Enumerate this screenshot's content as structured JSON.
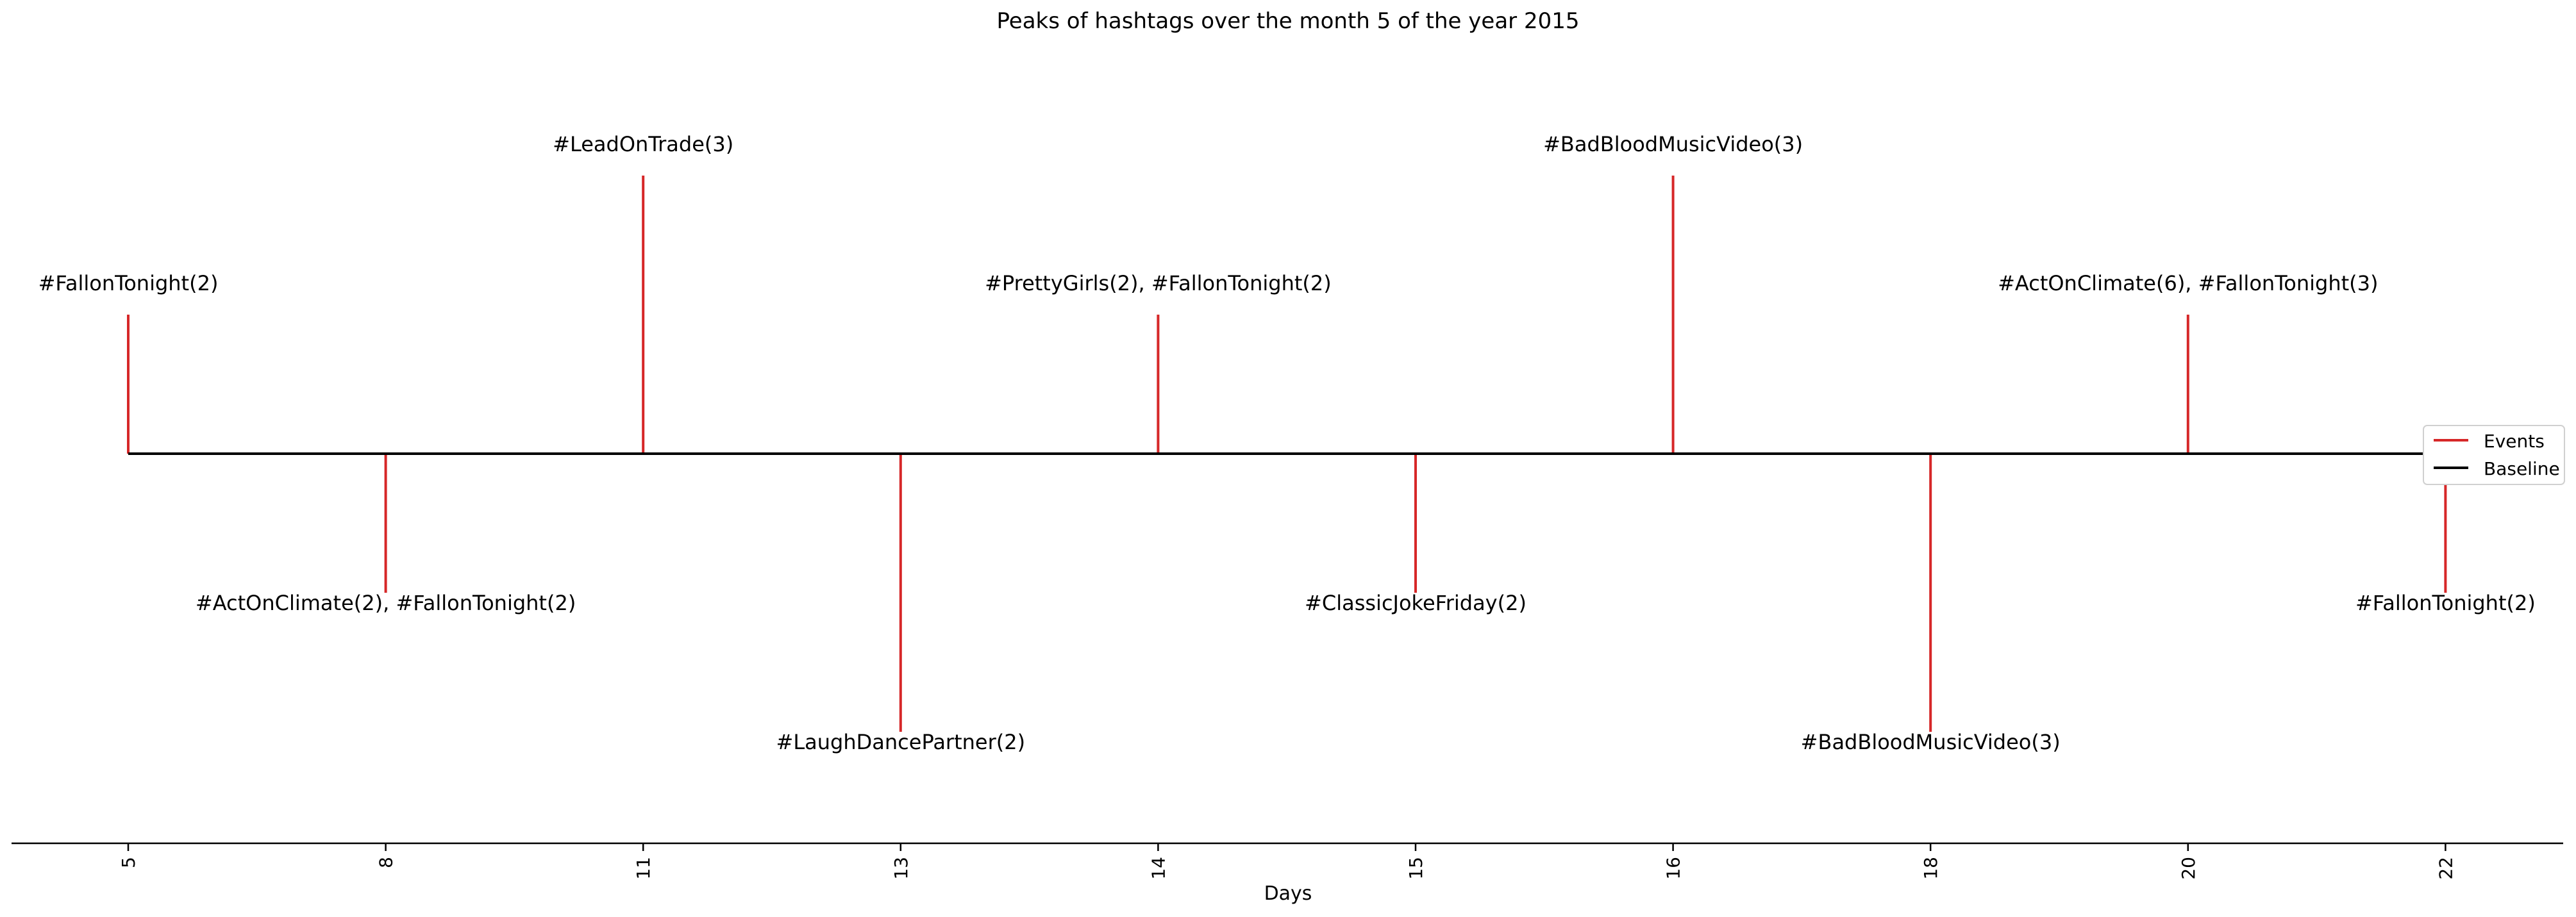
{
  "chart_data": {
    "type": "timeline",
    "title": "Peaks of hashtags over the month 5 of the year 2015",
    "xlabel": "Days",
    "ylabel": "",
    "categories": [
      "5",
      "8",
      "11",
      "13",
      "14",
      "15",
      "16",
      "18",
      "20",
      "22"
    ],
    "events": [
      {
        "day": "5",
        "level": 1,
        "label": "#FallonTonight(2)"
      },
      {
        "day": "8",
        "level": -1,
        "label": "#ActOnClimate(2), #FallonTonight(2)"
      },
      {
        "day": "11",
        "level": 2,
        "label": "#LeadOnTrade(3)"
      },
      {
        "day": "13",
        "level": -2,
        "label": "#LaughDancePartner(2)"
      },
      {
        "day": "14",
        "level": 1,
        "label": "#PrettyGirls(2), #FallonTonight(2)"
      },
      {
        "day": "15",
        "level": -1,
        "label": "#ClassicJokeFriday(2)"
      },
      {
        "day": "16",
        "level": 2,
        "label": "#BadBloodMusicVideo(3)"
      },
      {
        "day": "18",
        "level": -2,
        "label": "#BadBloodMusicVideo(3)"
      },
      {
        "day": "20",
        "level": 1,
        "label": "#ActOnClimate(6), #FallonTonight(3)"
      },
      {
        "day": "22",
        "level": -1,
        "label": "#FallonTonight(2)"
      }
    ],
    "series": [
      {
        "name": "Events",
        "color": "#d62728"
      },
      {
        "name": "Baseline",
        "color": "#000000"
      }
    ],
    "legend_position": "right",
    "grid": false
  }
}
